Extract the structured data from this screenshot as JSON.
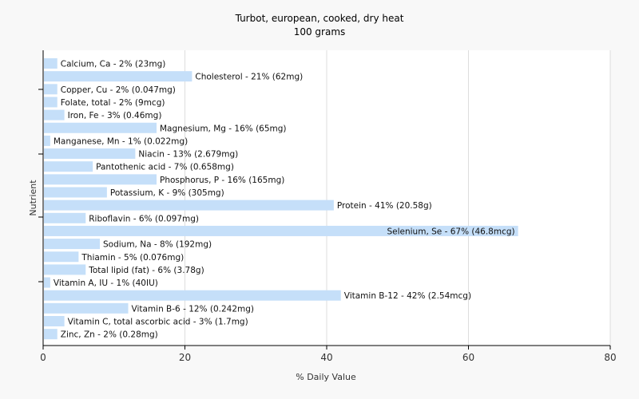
{
  "chart_data": {
    "type": "bar",
    "orientation": "horizontal",
    "title": "Turbot, european, cooked, dry heat",
    "subtitle": "100 grams",
    "xlabel": "% Daily Value",
    "ylabel": "Nutrient",
    "xlim": [
      0,
      80
    ],
    "xticks": [
      0,
      20,
      40,
      60,
      80
    ],
    "grid": true,
    "bar_color": "#c5dff9",
    "categories": [
      "Calcium, Ca",
      "Cholesterol",
      "Copper, Cu",
      "Folate, total",
      "Iron, Fe",
      "Magnesium, Mg",
      "Manganese, Mn",
      "Niacin",
      "Pantothenic acid",
      "Phosphorus, P",
      "Potassium, K",
      "Protein",
      "Riboflavin",
      "Selenium, Se",
      "Sodium, Na",
      "Thiamin",
      "Total lipid (fat)",
      "Vitamin A, IU",
      "Vitamin B-12",
      "Vitamin B-6",
      "Vitamin C, total ascorbic acid",
      "Zinc, Zn"
    ],
    "values": [
      2,
      21,
      2,
      2,
      3,
      16,
      1,
      13,
      7,
      16,
      9,
      41,
      6,
      67,
      8,
      5,
      6,
      1,
      42,
      12,
      3,
      2
    ],
    "labels": [
      "Calcium, Ca - 2% (23mg)",
      "Cholesterol - 21% (62mg)",
      "Copper, Cu - 2% (0.047mg)",
      "Folate, total - 2% (9mcg)",
      "Iron, Fe - 3% (0.46mg)",
      "Magnesium, Mg - 16% (65mg)",
      "Manganese, Mn - 1% (0.022mg)",
      "Niacin - 13% (2.679mg)",
      "Pantothenic acid - 7% (0.658mg)",
      "Phosphorus, P - 16% (165mg)",
      "Potassium, K - 9% (305mg)",
      "Protein - 41% (20.58g)",
      "Riboflavin - 6% (0.097mg)",
      "Selenium, Se - 67% (46.8mcg)",
      "Sodium, Na - 8% (192mg)",
      "Thiamin - 5% (0.076mg)",
      "Total lipid (fat) - 6% (3.78g)",
      "Vitamin A, IU - 1% (40IU)",
      "Vitamin B-12 - 42% (2.54mcg)",
      "Vitamin B-6 - 12% (0.242mg)",
      "Vitamin C, total ascorbic acid - 3% (1.7mg)",
      "Zinc, Zn - 2% (0.28mg)"
    ]
  }
}
